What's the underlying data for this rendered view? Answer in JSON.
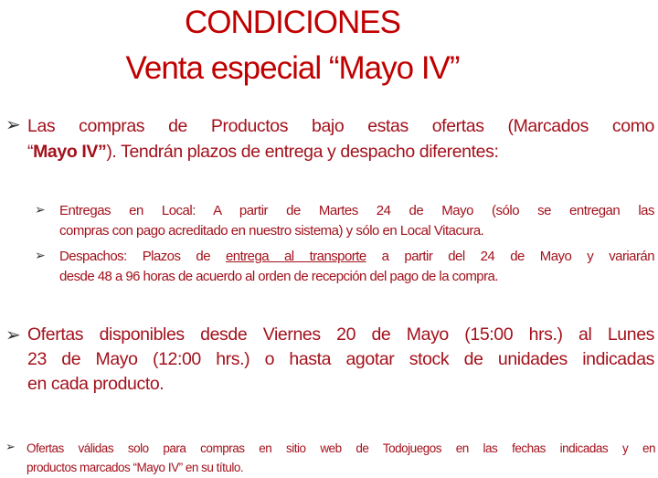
{
  "title": {
    "line1": "CONDICIONES",
    "line2": "Venta especial “Mayo IV”"
  },
  "colors": {
    "title": "#c00000",
    "text": "#a3111c",
    "bullet": "#333333"
  },
  "bullet_icon": "arrow-bullet-icon",
  "bullets": [
    {
      "line1": "Las compras de Productos bajo estas ofertas (Marcados como",
      "line2_open": "“",
      "line2_bold": "Mayo IV”",
      "line2_rest": "). Tendrán plazos de entrega y despacho diferentes:"
    },
    {
      "line1": "Entregas en Local: A partir de Martes 24 de Mayo (sólo se entregan las",
      "line2": "compras con pago acreditado en nuestro sistema) y sólo en Local Vitacura."
    },
    {
      "line1_pre": "Despachos: Plazos de ",
      "line1_underlined": "entrega al transporte",
      "line1_post": " a partir del 24 de Mayo y variarán",
      "line2": "desde 48 a 96 horas de acuerdo al orden de recepción del pago de la compra."
    },
    {
      "line1": "Ofertas disponibles desde Viernes 20 de Mayo (15:00 hrs.) al Lunes",
      "line2": "23 de Mayo (12:00 hrs.) o hasta agotar stock de unidades indicadas",
      "line3": "en cada producto."
    },
    {
      "line1": "Ofertas válidas solo para compras en sitio web de Todojuegos en las fechas indicadas y en",
      "line2": "productos marcados “Mayo IV” en su título."
    }
  ]
}
